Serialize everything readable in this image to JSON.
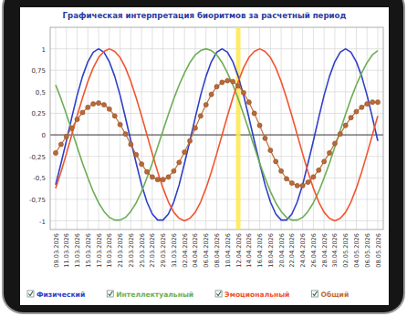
{
  "chart_data": {
    "type": "line",
    "title": "Графическая интерпретация биоритмов за расчетный период",
    "categories": [
      "09.03.2026",
      null,
      "11.03.2026",
      null,
      "13.03.2026",
      null,
      "15.03.2026",
      null,
      "17.03.2026",
      null,
      "19.03.2026",
      null,
      "21.03.2026",
      null,
      "23.03.2026",
      null,
      "25.03.2026",
      null,
      "27.03.2026",
      null,
      "29.03.2026",
      null,
      "31.03.2026",
      null,
      "02.04.2026",
      null,
      "04.04.2026",
      null,
      "06.04.2026",
      null,
      "08.04.2026",
      null,
      "10.04.2026",
      null,
      "12.04.2026",
      null,
      "14.04.2026",
      null,
      "16.04.2026",
      null,
      "18.04.2026",
      null,
      "20.04.2026",
      null,
      "22.04.2026",
      null,
      "24.04.2026",
      null,
      "26.04.2026",
      null,
      "28.04.2026",
      null,
      "30.04.2026",
      null,
      "02.05.2026",
      null,
      "04.05.2026",
      null,
      "06.05.2026",
      null,
      "08.05.2026"
    ],
    "series": [
      {
        "name": "Физический",
        "color": "#2f3fc8",
        "values": [
          -0.58,
          -0.33,
          -0.07,
          0.2,
          0.46,
          0.68,
          0.85,
          0.96,
          1,
          0.96,
          0.85,
          0.68,
          0.46,
          0.2,
          -0.07,
          -0.33,
          -0.58,
          -0.78,
          -0.92,
          -0.99,
          -0.99,
          -0.92,
          -0.78,
          -0.58,
          -0.33,
          -0.07,
          0.2,
          0.46,
          0.68,
          0.85,
          0.96,
          1,
          0.96,
          0.85,
          0.68,
          0.46,
          0.2,
          -0.07,
          -0.33,
          -0.58,
          -0.78,
          -0.92,
          -0.99,
          -0.99,
          -0.92,
          -0.78,
          -0.58,
          -0.33,
          -0.07,
          0.2,
          0.46,
          0.68,
          0.85,
          0.96,
          1,
          0.96,
          0.85,
          0.68,
          0.46,
          0.2,
          -0.07
        ]
      },
      {
        "name": "Интеллектуальный",
        "color": "#6cae55",
        "values": [
          0.58,
          0.42,
          0.24,
          0.05,
          -0.14,
          -0.33,
          -0.5,
          -0.66,
          -0.79,
          -0.89,
          -0.96,
          -0.99,
          -0.99,
          -0.96,
          -0.89,
          -0.79,
          -0.66,
          -0.5,
          -0.33,
          -0.14,
          0.05,
          0.24,
          0.42,
          0.58,
          0.72,
          0.84,
          0.93,
          0.98,
          1,
          0.98,
          0.93,
          0.84,
          0.72,
          0.58,
          0.42,
          0.24,
          0.05,
          -0.14,
          -0.33,
          -0.5,
          -0.66,
          -0.79,
          -0.89,
          -0.96,
          -0.99,
          -0.99,
          -0.96,
          -0.89,
          -0.79,
          -0.66,
          -0.5,
          -0.33,
          -0.14,
          0.05,
          0.24,
          0.42,
          0.58,
          0.72,
          0.84,
          0.93,
          0.98
        ]
      },
      {
        "name": "Эмоциональный",
        "color": "#f2552f",
        "values": [
          -0.62,
          -0.43,
          -0.22,
          0,
          0.22,
          0.43,
          0.62,
          0.78,
          0.9,
          0.97,
          1,
          0.97,
          0.9,
          0.78,
          0.62,
          0.43,
          0.22,
          0,
          -0.22,
          -0.43,
          -0.62,
          -0.78,
          -0.9,
          -0.97,
          -1,
          -0.97,
          -0.9,
          -0.78,
          -0.62,
          -0.43,
          -0.22,
          0,
          0.22,
          0.43,
          0.62,
          0.78,
          0.9,
          0.97,
          1,
          0.97,
          0.9,
          0.78,
          0.62,
          0.43,
          0.22,
          0,
          -0.22,
          -0.43,
          -0.62,
          -0.78,
          -0.9,
          -0.97,
          -1,
          -0.97,
          -0.9,
          -0.78,
          -0.62,
          -0.43,
          -0.22,
          0,
          0.22
        ]
      },
      {
        "name": "Общий",
        "color": "#c0703c",
        "marker": "circle",
        "values": [
          -0.21,
          -0.11,
          -0.02,
          0.08,
          0.18,
          0.26,
          0.32,
          0.36,
          0.37,
          0.35,
          0.3,
          0.22,
          0.12,
          0.01,
          -0.11,
          -0.23,
          -0.34,
          -0.43,
          -0.49,
          -0.52,
          -0.52,
          -0.49,
          -0.42,
          -0.32,
          -0.2,
          -0.07,
          0.08,
          0.22,
          0.35,
          0.47,
          0.56,
          0.61,
          0.63,
          0.62,
          0.57,
          0.49,
          0.38,
          0.25,
          0.11,
          -0.04,
          -0.18,
          -0.31,
          -0.42,
          -0.51,
          -0.56,
          -0.59,
          -0.59,
          -0.55,
          -0.49,
          -0.41,
          -0.31,
          -0.21,
          -0.1,
          0.01,
          0.11,
          0.2,
          0.27,
          0.32,
          0.36,
          0.38,
          0.38
        ]
      }
    ],
    "ylim": [
      -1.1,
      1.25
    ],
    "yticks": [
      -1,
      {
        "value": -0.75,
        "label": "-0,75"
      },
      {
        "value": -0.5,
        "label": "-0,5"
      },
      {
        "value": -0.25,
        "label": "-0,25"
      },
      0,
      {
        "value": 0.25,
        "label": "0,25"
      },
      {
        "value": 0.5,
        "label": "0,5"
      },
      {
        "value": 0.75,
        "label": "0,75"
      },
      1
    ],
    "grid": true,
    "legend": "bottom",
    "highlight_x": "12.04.2026"
  }
}
